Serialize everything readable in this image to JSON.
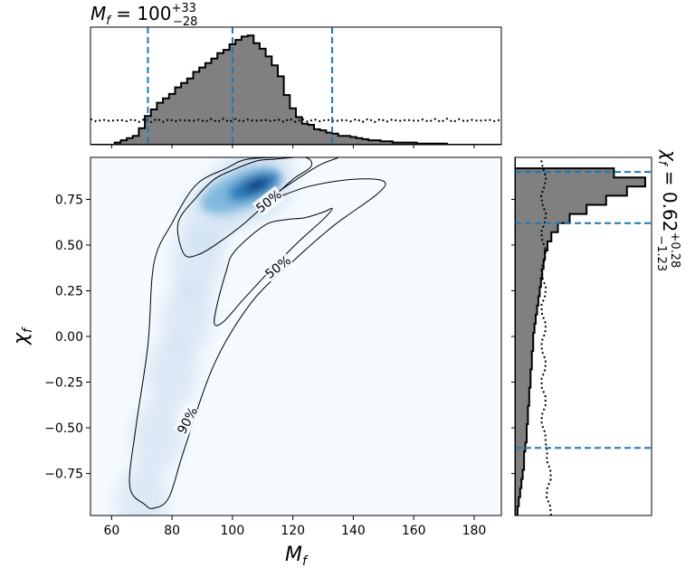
{
  "chart_data": {
    "type": "corner-posterior",
    "joint": {
      "type": "heatmap",
      "xlabel": "M_f",
      "ylabel": "χ_f",
      "xlim": [
        53,
        189
      ],
      "ylim": [
        -0.98,
        0.98
      ],
      "xticks": [
        60,
        80,
        100,
        120,
        140,
        160,
        180
      ],
      "yticks": [
        0.75,
        0.5,
        0.25,
        0.0,
        -0.25,
        -0.5,
        -0.75
      ],
      "ytick_labels": [
        "0.75",
        "0.50",
        "0.25",
        "0.00",
        "−0.25",
        "−0.50",
        "−0.75"
      ],
      "colormap": [
        "#f7fbff",
        "#c6dbef",
        "#6baed6",
        "#2171b5",
        "#08306b"
      ],
      "density_ridge": [
        [
          70,
          -0.9
        ],
        [
          75,
          -0.55
        ],
        [
          80,
          -0.2
        ],
        [
          85,
          0.1
        ],
        [
          88,
          0.4
        ],
        [
          92,
          0.65
        ],
        [
          100,
          0.78
        ],
        [
          106,
          0.82
        ],
        [
          112,
          0.86
        ]
      ],
      "contours": [
        {
          "label": "90%",
          "label_at": [
            85,
            -0.46
          ],
          "points": [
            [
              71,
              -0.92
            ],
            [
              66,
              -0.82
            ],
            [
              68,
              -0.5
            ],
            [
              72,
              -0.05
            ],
            [
              74,
              0.4
            ],
            [
              80,
              0.62
            ],
            [
              88,
              0.83
            ],
            [
              98,
              0.92
            ],
            [
              105,
              0.97
            ],
            [
              118,
              0.98
            ],
            [
              128,
              0.98
            ],
            [
              135,
              0.98
            ],
            [
              128,
              0.93
            ],
            [
              112,
              0.75
            ],
            [
              125,
              0.82
            ],
            [
              140,
              0.86
            ],
            [
              150,
              0.85
            ],
            [
              148,
              0.78
            ],
            [
              133,
              0.6
            ],
            [
              118,
              0.38
            ],
            [
              106,
              0.18
            ],
            [
              94,
              -0.15
            ],
            [
              84,
              -0.62
            ],
            [
              79,
              -0.88
            ],
            [
              74,
              -0.94
            ]
          ]
        },
        {
          "label": "50%",
          "label_at": [
            112,
            0.74
          ],
          "points": [
            [
              84,
              0.45
            ],
            [
              82,
              0.62
            ],
            [
              88,
              0.76
            ],
            [
              94,
              0.86
            ],
            [
              100,
              0.91
            ],
            [
              108,
              0.96
            ],
            [
              114,
              0.97
            ],
            [
              124,
              0.98
            ],
            [
              126,
              0.93
            ],
            [
              120,
              0.86
            ],
            [
              112,
              0.74
            ],
            [
              104,
              0.62
            ],
            [
              96,
              0.52
            ],
            [
              89,
              0.45
            ]
          ]
        },
        {
          "label": "50%",
          "label_at": [
            115,
            0.38
          ],
          "points": [
            [
              98,
              0.36
            ],
            [
              100,
              0.45
            ],
            [
              106,
              0.55
            ],
            [
              112,
              0.62
            ],
            [
              118,
              0.64
            ],
            [
              124,
              0.65
            ],
            [
              130,
              0.68
            ],
            [
              133,
              0.7
            ],
            [
              130,
              0.64
            ],
            [
              122,
              0.52
            ],
            [
              113,
              0.37
            ],
            [
              104,
              0.21
            ],
            [
              97,
              0.08
            ],
            [
              94,
              0.07
            ],
            [
              95,
              0.18
            ]
          ]
        }
      ]
    },
    "marginal_x": {
      "type": "histogram",
      "title": "M_f = 100^{+33}_{-28}",
      "median": 100,
      "plus": 33,
      "minus": 28,
      "quantile_lines": [
        72,
        100,
        133
      ],
      "bins": [
        53,
        55,
        57,
        59,
        61,
        63,
        65,
        67,
        69,
        71,
        73,
        75,
        77,
        79,
        81,
        83,
        85,
        87,
        89,
        91,
        93,
        95,
        97,
        99,
        101,
        103,
        105,
        107,
        109,
        111,
        113,
        115,
        117,
        119,
        121,
        123,
        125,
        127,
        129,
        131,
        133,
        135,
        137,
        139,
        141,
        143,
        145,
        147,
        149,
        151,
        153,
        155,
        157,
        159,
        161,
        163,
        165,
        167,
        169,
        171,
        173,
        175,
        177,
        179,
        181,
        183,
        185,
        187,
        189
      ],
      "counts": [
        0,
        0,
        0,
        0,
        0.02,
        0.04,
        0.06,
        0.08,
        0.15,
        0.26,
        0.32,
        0.38,
        0.42,
        0.46,
        0.52,
        0.56,
        0.6,
        0.66,
        0.7,
        0.74,
        0.78,
        0.83,
        0.86,
        0.91,
        0.95,
        0.98,
        0.99,
        0.92,
        0.87,
        0.8,
        0.72,
        0.62,
        0.45,
        0.33,
        0.25,
        0.19,
        0.18,
        0.14,
        0.13,
        0.11,
        0.1,
        0.08,
        0.08,
        0.07,
        0.06,
        0.05,
        0.04,
        0.04,
        0.03,
        0.03,
        0.02,
        0.02,
        0.02,
        0.02,
        0.01,
        0.01,
        0.01,
        0.01,
        0.01,
        0.0,
        0.0,
        0.0,
        0.0,
        0.0,
        0.0,
        0.0,
        0.0,
        0.0
      ],
      "prior_level": 0.22
    },
    "marginal_y": {
      "type": "histogram",
      "orientation": "horizontal",
      "title": "χ_f = 0.62^{+0.28}_{-1.23}",
      "median": 0.62,
      "plus": 0.28,
      "minus": 1.23,
      "quantile_lines": [
        0.9,
        0.62,
        -0.61
      ],
      "bins": [
        -0.98,
        -0.93,
        -0.88,
        -0.83,
        -0.78,
        -0.73,
        -0.68,
        -0.63,
        -0.58,
        -0.53,
        -0.48,
        -0.43,
        -0.38,
        -0.33,
        -0.28,
        -0.23,
        -0.18,
        -0.13,
        -0.08,
        -0.03,
        0.02,
        0.07,
        0.12,
        0.17,
        0.22,
        0.27,
        0.32,
        0.37,
        0.42,
        0.47,
        0.52,
        0.57,
        0.62,
        0.67,
        0.72,
        0.77,
        0.82,
        0.87,
        0.92,
        0.98
      ],
      "counts": [
        0.02,
        0.03,
        0.04,
        0.05,
        0.06,
        0.07,
        0.07,
        0.08,
        0.09,
        0.09,
        0.1,
        0.1,
        0.11,
        0.11,
        0.12,
        0.12,
        0.13,
        0.13,
        0.14,
        0.14,
        0.15,
        0.16,
        0.17,
        0.18,
        0.19,
        0.2,
        0.21,
        0.22,
        0.23,
        0.25,
        0.28,
        0.33,
        0.42,
        0.55,
        0.7,
        0.86,
        1.0,
        0.76,
        0.0
      ],
      "prior_level": 0.22
    }
  }
}
